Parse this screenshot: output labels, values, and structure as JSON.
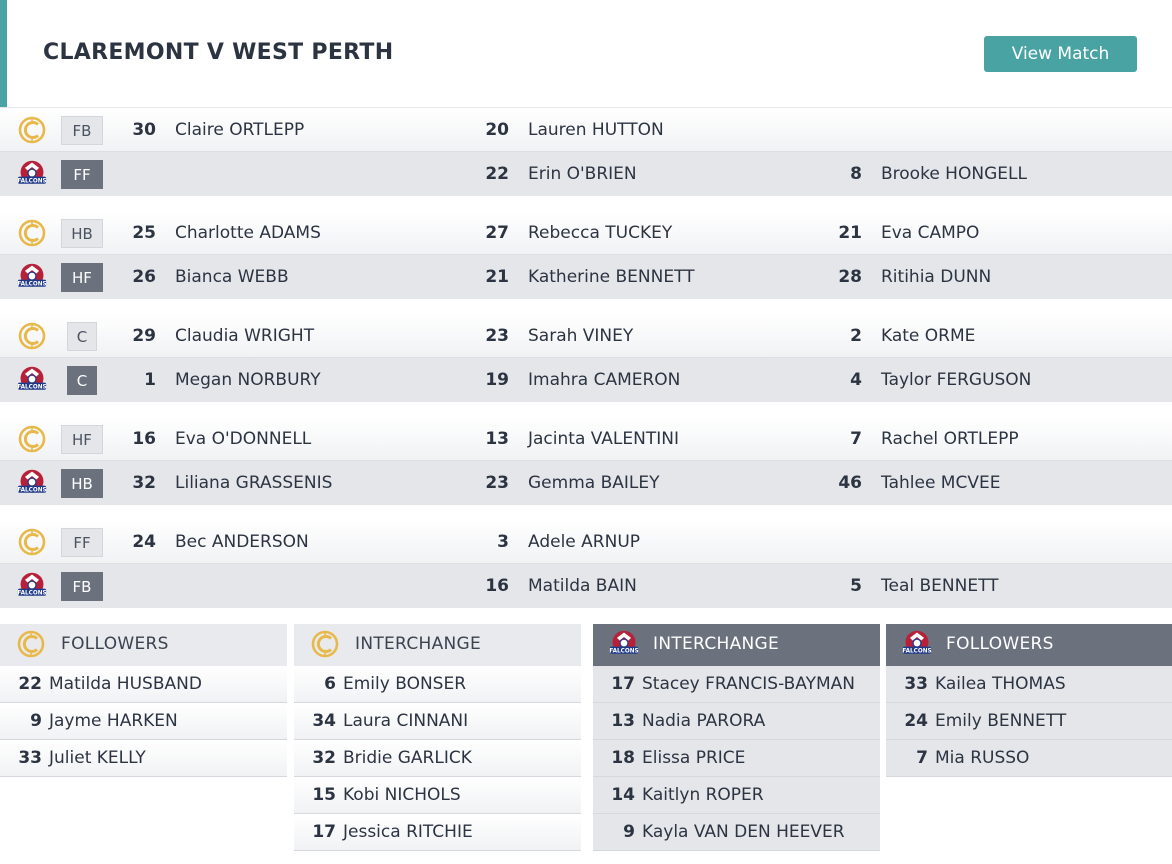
{
  "match": {
    "title": "CLAREMONT V WEST PERTH",
    "view_button": "View Match"
  },
  "teams": {
    "home": {
      "logo": "claremont-logo",
      "color": "#e8b84a"
    },
    "away": {
      "logo": "west-perth-falcons-logo",
      "logo_text": "FALCONS",
      "color": "#1f3a8a"
    }
  },
  "lines": [
    {
      "home": {
        "position": "FB",
        "players": [
          {
            "num": "30",
            "name": "Claire ORTLEPP"
          },
          {
            "num": "20",
            "name": "Lauren HUTTON"
          },
          {
            "num": "",
            "name": ""
          }
        ]
      },
      "away": {
        "position": "FF",
        "players": [
          {
            "num": "",
            "name": ""
          },
          {
            "num": "22",
            "name": "Erin O'BRIEN"
          },
          {
            "num": "8",
            "name": "Brooke HONGELL"
          }
        ]
      }
    },
    {
      "home": {
        "position": "HB",
        "players": [
          {
            "num": "25",
            "name": "Charlotte ADAMS"
          },
          {
            "num": "27",
            "name": "Rebecca TUCKEY"
          },
          {
            "num": "21",
            "name": "Eva CAMPO"
          }
        ]
      },
      "away": {
        "position": "HF",
        "players": [
          {
            "num": "26",
            "name": "Bianca WEBB"
          },
          {
            "num": "21",
            "name": "Katherine BENNETT"
          },
          {
            "num": "28",
            "name": "Ritihia DUNN"
          }
        ]
      }
    },
    {
      "home": {
        "position": "C",
        "players": [
          {
            "num": "29",
            "name": "Claudia WRIGHT"
          },
          {
            "num": "23",
            "name": "Sarah VINEY"
          },
          {
            "num": "2",
            "name": "Kate ORME"
          }
        ]
      },
      "away": {
        "position": "C",
        "players": [
          {
            "num": "1",
            "name": "Megan NORBURY"
          },
          {
            "num": "19",
            "name": "Imahra CAMERON"
          },
          {
            "num": "4",
            "name": "Taylor FERGUSON"
          }
        ]
      }
    },
    {
      "home": {
        "position": "HF",
        "players": [
          {
            "num": "16",
            "name": "Eva O'DONNELL"
          },
          {
            "num": "13",
            "name": "Jacinta VALENTINI"
          },
          {
            "num": "7",
            "name": "Rachel ORTLEPP"
          }
        ]
      },
      "away": {
        "position": "HB",
        "players": [
          {
            "num": "32",
            "name": "Liliana GRASSENIS"
          },
          {
            "num": "23",
            "name": "Gemma BAILEY"
          },
          {
            "num": "46",
            "name": "Tahlee MCVEE"
          }
        ]
      }
    },
    {
      "home": {
        "position": "FF",
        "players": [
          {
            "num": "24",
            "name": "Bec ANDERSON"
          },
          {
            "num": "3",
            "name": "Adele ARNUP"
          },
          {
            "num": "",
            "name": ""
          }
        ]
      },
      "away": {
        "position": "FB",
        "players": [
          {
            "num": "",
            "name": ""
          },
          {
            "num": "16",
            "name": "Matilda BAIN"
          },
          {
            "num": "5",
            "name": "Teal BENNETT"
          }
        ]
      }
    }
  ],
  "panels": [
    {
      "title": "FOLLOWERS",
      "team": "home",
      "players": [
        {
          "num": "22",
          "name": "Matilda HUSBAND"
        },
        {
          "num": "9",
          "name": "Jayme HARKEN"
        },
        {
          "num": "33",
          "name": "Juliet KELLY"
        }
      ]
    },
    {
      "title": "INTERCHANGE",
      "team": "home",
      "players": [
        {
          "num": "6",
          "name": "Emily BONSER"
        },
        {
          "num": "34",
          "name": "Laura CINNANI"
        },
        {
          "num": "32",
          "name": "Bridie GARLICK"
        },
        {
          "num": "15",
          "name": "Kobi NICHOLS"
        },
        {
          "num": "17",
          "name": "Jessica RITCHIE"
        }
      ]
    },
    {
      "title": "INTERCHANGE",
      "team": "away",
      "players": [
        {
          "num": "17",
          "name": "Stacey FRANCIS-BAYMAN"
        },
        {
          "num": "13",
          "name": "Nadia PARORA"
        },
        {
          "num": "18",
          "name": "Elissa PRICE"
        },
        {
          "num": "14",
          "name": "Kaitlyn ROPER"
        },
        {
          "num": "9",
          "name": "Kayla VAN DEN HEEVER"
        }
      ]
    },
    {
      "title": "FOLLOWERS",
      "team": "away",
      "players": [
        {
          "num": "33",
          "name": "Kailea THOMAS"
        },
        {
          "num": "24",
          "name": "Emily BENNETT"
        },
        {
          "num": "7",
          "name": "Mia RUSSO"
        }
      ]
    }
  ]
}
